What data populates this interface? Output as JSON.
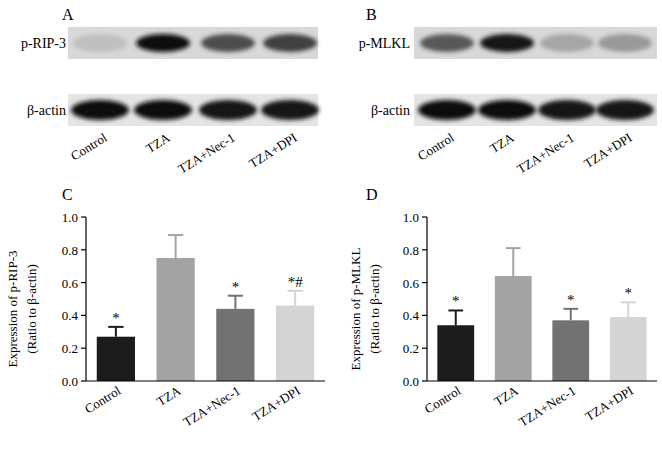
{
  "blots": [
    {
      "panel_label": "A",
      "rows": [
        "p-RIP-3",
        "β-actin"
      ],
      "lanes": [
        "Control",
        "TZA",
        "TZA+Nec-1",
        "TZA+DPI"
      ]
    },
    {
      "panel_label": "B",
      "rows": [
        "p-MLKL",
        "β-actin"
      ],
      "lanes": [
        "Control",
        "TZA",
        "TZA+Nec-1",
        "TZA+DPI"
      ]
    }
  ],
  "chart_data": [
    {
      "type": "bar",
      "title": "C",
      "ylabel": [
        "Expression of p-RIP-3",
        "(Ratio to β-actin)"
      ],
      "categories": [
        "Control",
        "TZA",
        "TZA+Nec-1",
        "TZA+DPI"
      ],
      "values": [
        0.27,
        0.75,
        0.44,
        0.46
      ],
      "errors": [
        0.06,
        0.14,
        0.08,
        0.09
      ],
      "significance": [
        "*",
        null,
        "*",
        "*#"
      ],
      "colors": [
        "#1c1c1c",
        "#a3a3a3",
        "#727272",
        "#d4d4d4"
      ],
      "ylim": [
        0,
        1.0
      ],
      "yticks": [
        {
          "value": 0,
          "label": "0.0"
        },
        0.2,
        0.4,
        0.6,
        0.8,
        {
          "value": 1.0,
          "label": "1.0"
        }
      ]
    },
    {
      "type": "bar",
      "title": "D",
      "ylabel": [
        "Expression of p-MLKL",
        "(Ratio to β-actin)"
      ],
      "categories": [
        "Control",
        "TZA",
        "TZA+Nec-1",
        "TZA+DPI"
      ],
      "values": [
        0.34,
        0.64,
        0.37,
        0.39
      ],
      "errors": [
        0.09,
        0.17,
        0.07,
        0.09
      ],
      "significance": [
        "*",
        null,
        "*",
        "*"
      ],
      "colors": [
        "#1c1c1c",
        "#a3a3a3",
        "#727272",
        "#d4d4d4"
      ],
      "ylim": [
        0,
        1.0
      ],
      "yticks": [
        {
          "value": 0,
          "label": "0.0"
        },
        0.2,
        0.4,
        0.6,
        0.8,
        {
          "value": 1.0,
          "label": "1.0"
        }
      ]
    }
  ]
}
